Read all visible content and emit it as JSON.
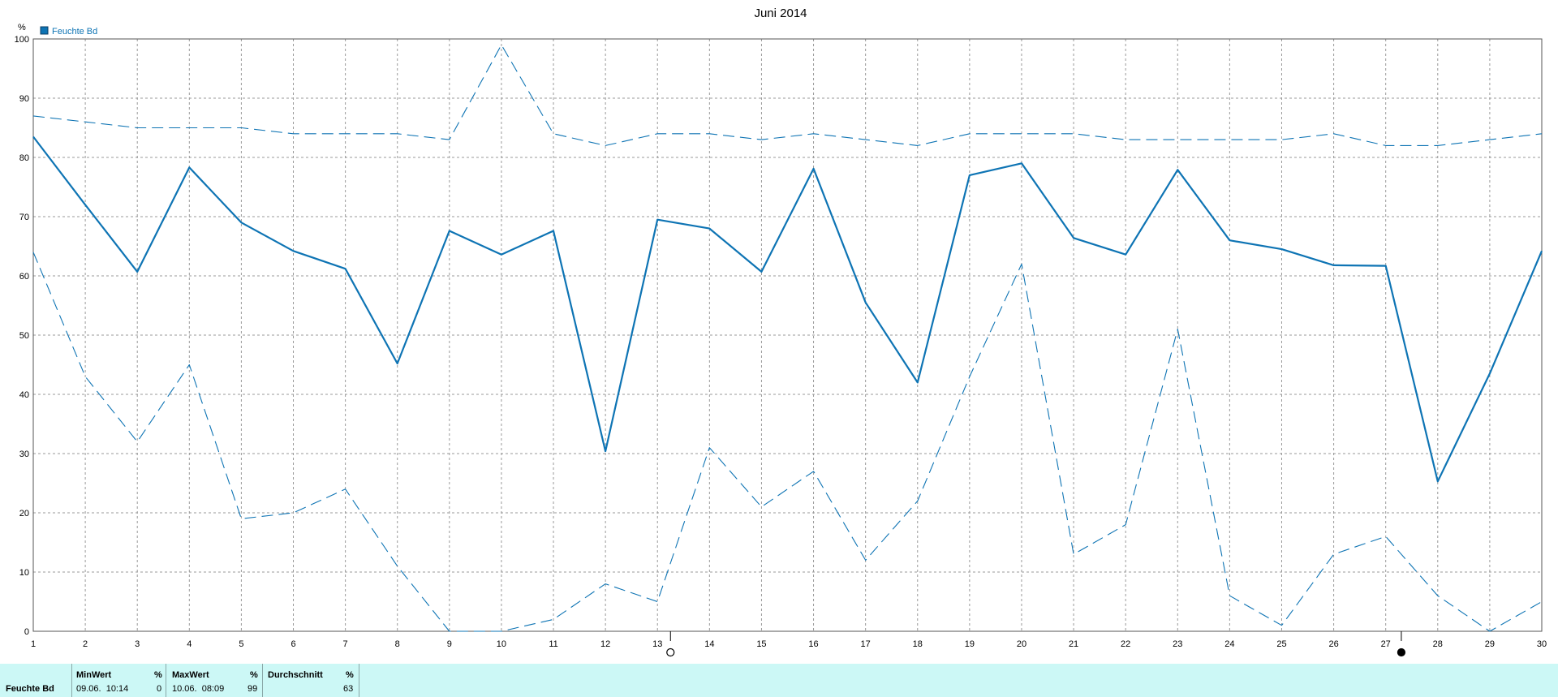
{
  "chart_data": {
    "type": "line",
    "title": "Juni 2014",
    "ylabel": "%",
    "xlabel": "",
    "ylim": [
      0,
      100
    ],
    "yticks": [
      0,
      10,
      20,
      30,
      40,
      50,
      60,
      70,
      80,
      90,
      100
    ],
    "xlim": [
      1,
      30
    ],
    "x": [
      1,
      2,
      3,
      4,
      5,
      6,
      7,
      8,
      9,
      10,
      11,
      12,
      13,
      14,
      15,
      16,
      17,
      18,
      19,
      20,
      21,
      22,
      23,
      24,
      25,
      26,
      27,
      28,
      29,
      30
    ],
    "xtick_labels": [
      "1",
      "2",
      "3",
      "4",
      "5",
      "6",
      "7",
      "8",
      "9",
      "10",
      "11",
      "12",
      "13",
      "14",
      "15",
      "16",
      "17",
      "18",
      "19",
      "20",
      "21",
      "22",
      "23",
      "24",
      "25",
      "26",
      "27",
      "28",
      "29",
      "30"
    ],
    "grid": true,
    "legend": {
      "placement": "top-left",
      "entries": [
        "Feuchte Bd"
      ]
    },
    "colors": {
      "series": "#0e74b4",
      "axes": "#555555",
      "grid": "#999999"
    },
    "series": [
      {
        "name": "Feuchte Bd",
        "style": "solid",
        "values": [
          83.5,
          72,
          60.7,
          78.3,
          69,
          64.2,
          61.2,
          45.2,
          67.6,
          63.6,
          67.6,
          30.4,
          69.5,
          68,
          60.7,
          78.1,
          55.5,
          42,
          77,
          79,
          66.4,
          63.6,
          77.9,
          66,
          64.5,
          61.8,
          61.7,
          25.3,
          43.5,
          64.2
        ]
      },
      {
        "style": "dashed-max",
        "values": [
          87,
          86,
          85,
          85,
          85,
          84,
          84,
          84,
          83,
          99,
          84,
          82,
          84,
          84,
          83,
          84,
          83,
          82,
          84,
          84,
          84,
          83,
          83,
          83,
          83,
          84,
          82,
          82,
          83,
          84
        ]
      },
      {
        "style": "dashed-min",
        "values": [
          64,
          43,
          32,
          45,
          19,
          20,
          24,
          11,
          0,
          0,
          2,
          8,
          5,
          31,
          21,
          27,
          12,
          22,
          43,
          62,
          13,
          18,
          51,
          6,
          1,
          13,
          16,
          6,
          0,
          5
        ]
      }
    ],
    "moon_markers": [
      {
        "day": 13.25,
        "phase": "new-moon"
      },
      {
        "day": 27.3,
        "phase": "full-moon"
      }
    ]
  },
  "stats": {
    "series_label": "Feuchte Bd",
    "min": {
      "header": "MinWert",
      "unit": "%",
      "datetime": "09.06.  10:14",
      "value": "0"
    },
    "max": {
      "header": "MaxWert",
      "unit": "%",
      "datetime": "10.06.  08:09",
      "value": "99"
    },
    "avg": {
      "header": "Durchschnitt",
      "unit": "%",
      "value": "63"
    }
  }
}
